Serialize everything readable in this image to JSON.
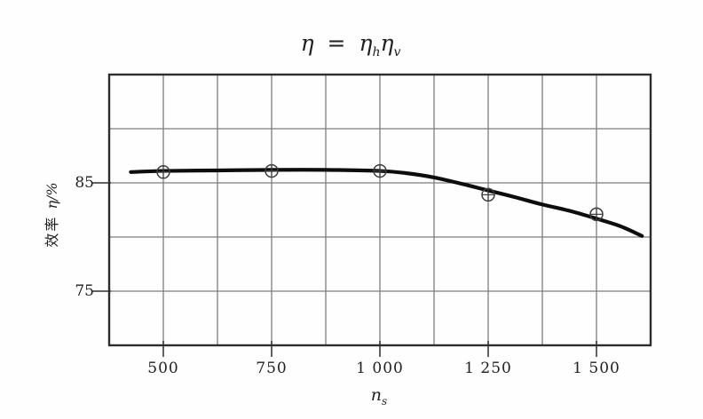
{
  "figure": {
    "kind": "scanned textbook efficiency chart",
    "title_parts": {
      "lhs": "η",
      "eq": "=",
      "t1_base": "η",
      "t1_sub": "h",
      "t2_base": "η",
      "t2_sub": "v"
    },
    "ylabel_cn": "效率",
    "ylabel_sym": "η/%",
    "xlabel_base": "n",
    "xlabel_sub": "s"
  },
  "chart_data": {
    "type": "line",
    "title": "η = ηₕηᵥ",
    "xlabel": "nₛ",
    "ylabel": "效率 η/%",
    "xlim": [
      375,
      1625
    ],
    "ylim": [
      70,
      95
    ],
    "grid": true,
    "x_grid_step": 125,
    "y_grid_step": 5,
    "x_ticks": [
      {
        "value": 500,
        "label": "500"
      },
      {
        "value": 750,
        "label": "750"
      },
      {
        "value": 1000,
        "label": "1 000"
      },
      {
        "value": 1250,
        "label": "1 250"
      },
      {
        "value": 1500,
        "label": "1 500"
      }
    ],
    "y_ticks": [
      {
        "value": 85,
        "label": "85"
      },
      {
        "value": 75,
        "label": "75"
      }
    ],
    "marker_style": "circle-cross",
    "points": [
      [
        500,
        86.0
      ],
      [
        750,
        86.1
      ],
      [
        1000,
        86.1
      ],
      [
        1250,
        83.9
      ],
      [
        1500,
        82.1
      ]
    ],
    "curve": [
      [
        425,
        86.0
      ],
      [
        500,
        86.1
      ],
      [
        625,
        86.15
      ],
      [
        750,
        86.2
      ],
      [
        875,
        86.2
      ],
      [
        1000,
        86.1
      ],
      [
        1060,
        85.9
      ],
      [
        1125,
        85.5
      ],
      [
        1190,
        84.9
      ],
      [
        1250,
        84.3
      ],
      [
        1310,
        83.7
      ],
      [
        1375,
        83.0
      ],
      [
        1440,
        82.4
      ],
      [
        1500,
        81.7
      ],
      [
        1555,
        81.0
      ],
      [
        1605,
        80.1
      ]
    ],
    "colors": {
      "curve": "#0d0d0d",
      "grid": "#7d7d7d",
      "border": "#2e2e2e",
      "marker": "#3c3c3c",
      "text": "#1f1f1f",
      "background": "#fefefe"
    }
  }
}
